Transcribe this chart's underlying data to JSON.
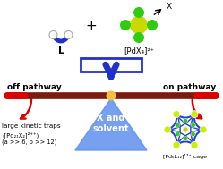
{
  "background_color": "#ffffff",
  "blue_color": "#2030cc",
  "blue_light": "#4060dd",
  "red_arrow_color": "#dd0000",
  "balance_bar_color": "#7b1a0e",
  "triangle_color": "#3060cc",
  "triangle_light": "#6090ee",
  "pivot_color": "#f0c040",
  "text_off_pathway": "off pathway",
  "text_on_pathway": "on pathway",
  "text_kinetic1": "large kinetic traps",
  "text_kinetic2": "([Pd₂₁X₂]²⁺⁺)",
  "text_kinetic3": "(a >> 6, b >> 12)",
  "text_triangle1": "X and",
  "text_triangle2": "solvent",
  "text_L": "L",
  "text_PdX": "[PdX₄]²⁺",
  "text_cage": "[Pd₆L₁₂]¹²⁺ cage",
  "text_X": "X",
  "plus_sign": "+",
  "Pd_yellow": "#c8d800",
  "Pd_green": "#30cc10",
  "cage_blue": "#2244cc",
  "cage_green": "#88cc00",
  "cage_node_color": "#ccee00",
  "node_outline": "#ffffff"
}
